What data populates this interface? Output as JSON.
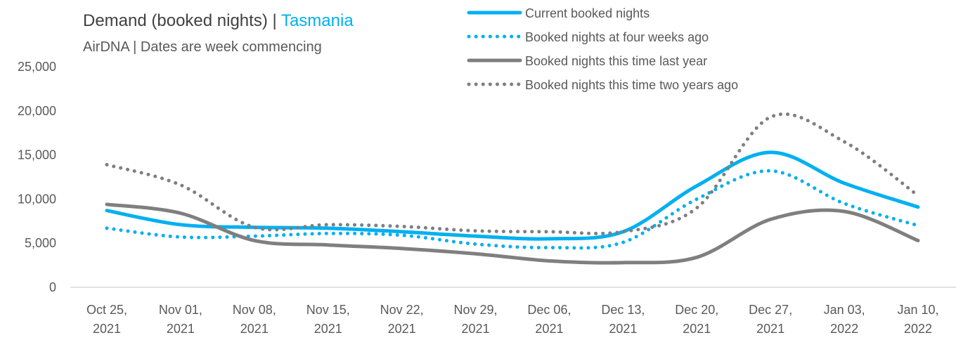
{
  "chart_data": {
    "type": "line",
    "title": [
      "Demand (booked nights) | ",
      "Tasmania"
    ],
    "subtitle": "AirDNA | Dates are week commencing",
    "categories": [
      "Oct 25, 2021",
      "Nov 01, 2021",
      "Nov 08, 2021",
      "Nov 15, 2021",
      "Nov 22, 2021",
      "Nov 29, 2021",
      "Dec 06, 2021",
      "Dec 13, 2021",
      "Dec 20, 2021",
      "Dec 27, 2021",
      "Jan 03, 2022",
      "Jan 10, 2022"
    ],
    "series": [
      {
        "name": "Current booked nights",
        "color": "#00b0f0",
        "style": "solid",
        "values": [
          8700,
          7100,
          6800,
          6700,
          6300,
          5800,
          5500,
          6300,
          11500,
          15300,
          11800,
          9100
        ]
      },
      {
        "name": "Booked nights at four weeks ago",
        "color": "#00b0f0",
        "style": "dotted",
        "values": [
          6700,
          5700,
          5800,
          6100,
          5900,
          4900,
          4500,
          5100,
          10000,
          13200,
          9500,
          7000
        ]
      },
      {
        "name": "Booked nights this time last year",
        "color": "#7f7f7f",
        "style": "solid",
        "values": [
          9400,
          8400,
          5300,
          4800,
          4400,
          3800,
          3000,
          2800,
          3400,
          7700,
          8600,
          5300
        ]
      },
      {
        "name": "Booked nights this time two years ago",
        "color": "#7f7f7f",
        "style": "dotted",
        "values": [
          13900,
          11600,
          6800,
          7100,
          6900,
          6400,
          6300,
          6300,
          9000,
          19300,
          16500,
          10400
        ]
      }
    ],
    "ylim": [
      0,
      25000
    ],
    "yticks": [
      {
        "value": 0,
        "label": "0"
      },
      {
        "value": 5000,
        "label": "5,000"
      },
      {
        "value": 10000,
        "label": "10,000"
      },
      {
        "value": 15000,
        "label": "15,000"
      },
      {
        "value": 20000,
        "label": "20,000"
      },
      {
        "value": 25000,
        "label": "25,000"
      }
    ],
    "grid": false,
    "smooth": true,
    "legend": "top-right"
  }
}
